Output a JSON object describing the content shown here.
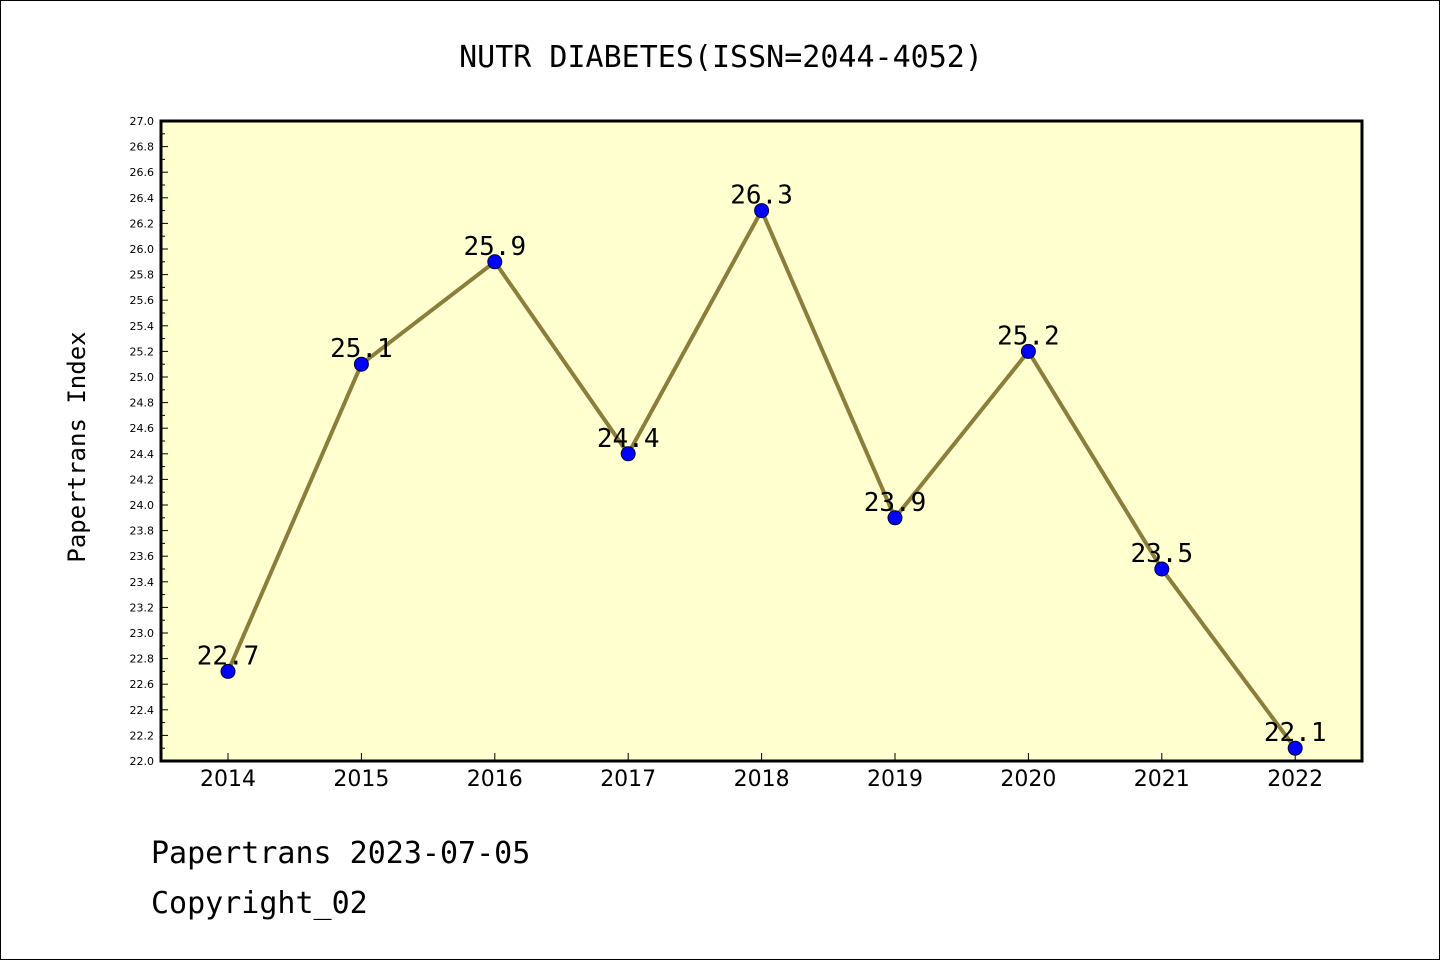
{
  "footer": {
    "date_line": "Papertrans 2023-07-05",
    "copyright_line": "Copyright_02"
  },
  "chart_data": {
    "type": "line",
    "title": "NUTR DIABETES(ISSN=2044-4052)",
    "xlabel": "",
    "ylabel": "Papertrans Index",
    "x": [
      "2014",
      "2015",
      "2016",
      "2017",
      "2018",
      "2019",
      "2020",
      "2021",
      "2022"
    ],
    "series": [
      {
        "values": [
          22.7,
          25.1,
          25.9,
          24.4,
          26.3,
          23.9,
          25.2,
          23.5,
          22.1
        ],
        "labels": [
          "22.7",
          "25.1",
          "25.9",
          "24.4",
          "26.3",
          "23.9",
          "25.2",
          "23.5",
          "22.1"
        ]
      }
    ],
    "ylim": [
      22.0,
      27.0
    ],
    "ytick_step": 0.2,
    "yticks": [
      "22.0",
      "22.2",
      "22.4",
      "22.6",
      "22.8",
      "23.0",
      "23.2",
      "23.4",
      "23.6",
      "23.8",
      "24.0",
      "24.2",
      "24.4",
      "24.6",
      "24.8",
      "25.0",
      "25.2",
      "25.4",
      "25.6",
      "25.8",
      "26.0",
      "26.2",
      "26.4",
      "26.6",
      "26.8",
      "27.0"
    ],
    "grid": false,
    "legend": "none",
    "colors": {
      "plot_background": "#ffffd0",
      "line": "#8b7d3a",
      "marker": "#0000ff"
    }
  }
}
